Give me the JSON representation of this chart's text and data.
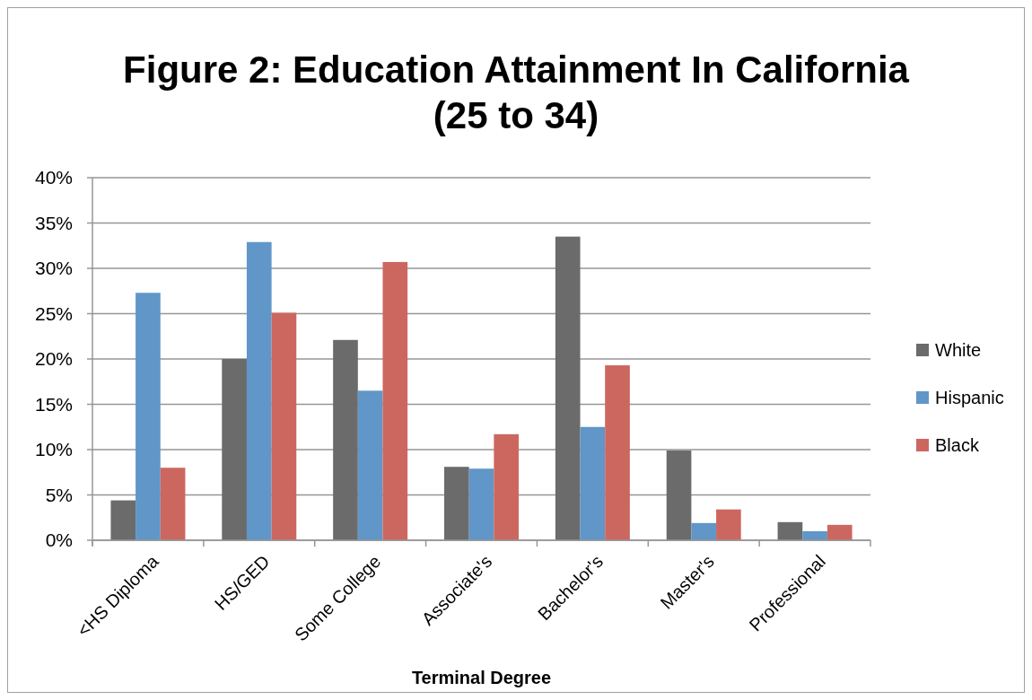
{
  "chart_data": {
    "type": "bar",
    "title": "Figure 2: Education Attainment In California (25 to 34)",
    "xlabel": "Terminal Degree",
    "categories": [
      "<HS Diploma",
      "HS/GED",
      "Some College",
      "Associate's",
      "Bachelor's",
      "Master's",
      "Professional"
    ],
    "series": [
      {
        "name": "White",
        "color": "#6b6b6b",
        "values": [
          4.4,
          20.0,
          22.1,
          8.1,
          33.5,
          9.9,
          2.0
        ]
      },
      {
        "name": "Hispanic",
        "color": "#6096c8",
        "values": [
          27.3,
          32.9,
          16.5,
          7.9,
          12.5,
          1.9,
          1.0
        ]
      },
      {
        "name": "Black",
        "color": "#cc6760",
        "values": [
          8.0,
          25.1,
          30.7,
          11.7,
          19.3,
          3.4,
          1.7
        ]
      }
    ],
    "ylim": [
      0,
      40
    ],
    "yticks": [
      {
        "value": 0,
        "label": "0%"
      },
      {
        "value": 5,
        "label": "5%"
      },
      {
        "value": 10,
        "label": "10%"
      },
      {
        "value": 15,
        "label": "15%"
      },
      {
        "value": 20,
        "label": "20%"
      },
      {
        "value": 25,
        "label": "25%"
      },
      {
        "value": 30,
        "label": "30%"
      },
      {
        "value": 35,
        "label": "35%"
      },
      {
        "value": 40,
        "label": "40%"
      }
    ],
    "grid": "y",
    "legend": "right"
  }
}
